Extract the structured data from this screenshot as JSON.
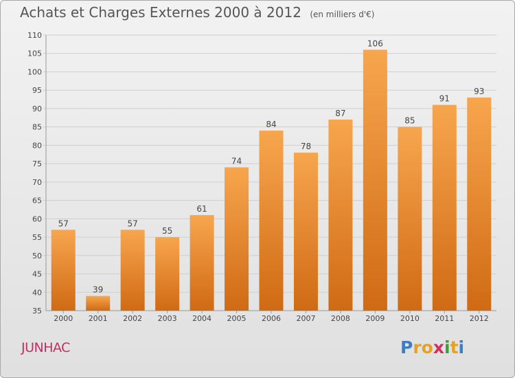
{
  "header": {
    "title": "Achats et Charges Externes 2000 à 2012",
    "unit": "(en milliers d'€)"
  },
  "footer": {
    "commune": "JUNHAC",
    "logo_letters": [
      "P",
      "r",
      "o",
      "x",
      "i",
      "t",
      "i"
    ],
    "logo_colors": [
      "#3a7ec8",
      "#e8a020",
      "#e8a020",
      "#d03060",
      "#3a9e3a",
      "#e8a020",
      "#3a7ec8"
    ]
  },
  "colors": {
    "bar_top": "#f7a64e",
    "bar_bottom": "#d06a14",
    "grid": "#cfcfcf",
    "text": "#444444"
  },
  "chart_data": {
    "type": "bar",
    "title": "Achats et Charges Externes 2000 à 2012",
    "subtitle": "(en milliers d'€)",
    "categories": [
      "2000",
      "2001",
      "2002",
      "2003",
      "2004",
      "2005",
      "2006",
      "2007",
      "2008",
      "2009",
      "2010",
      "2011",
      "2012"
    ],
    "values": [
      57,
      39,
      57,
      55,
      61,
      74,
      84,
      78,
      87,
      106,
      85,
      91,
      93
    ],
    "ylim": [
      35,
      110
    ],
    "yticks": [
      35,
      40,
      45,
      50,
      55,
      60,
      65,
      70,
      75,
      80,
      85,
      90,
      95,
      100,
      105,
      110
    ],
    "grid": true,
    "data_labels": true
  }
}
